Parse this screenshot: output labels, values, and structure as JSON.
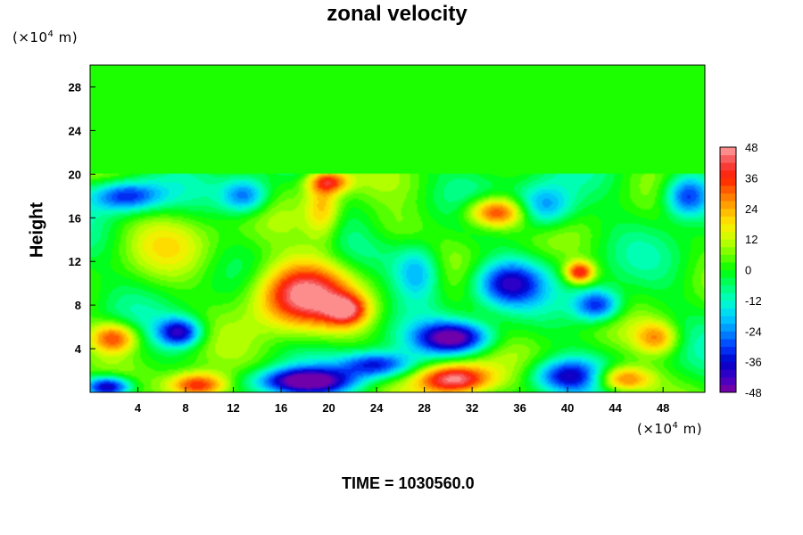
{
  "chart_data": {
    "type": "heatmap",
    "title": "zonal velocity",
    "xlabel": "",
    "ylabel": "Height",
    "x_unit_prefix": "(×10",
    "x_unit_exp": "4",
    "x_unit_suffix": " m)",
    "y_unit_prefix": "(×10",
    "y_unit_exp": "4",
    "y_unit_suffix": " m)",
    "xlim": [
      0,
      51.5
    ],
    "ylim": [
      0,
      30
    ],
    "x_ticks": [
      4,
      8,
      12,
      16,
      20,
      24,
      28,
      32,
      36,
      40,
      44,
      48
    ],
    "y_ticks": [
      4,
      8,
      12,
      16,
      20,
      24,
      28
    ],
    "colorbar": {
      "range": [
        -48,
        48
      ],
      "ticks": [
        48,
        36,
        24,
        12,
        0,
        -12,
        -24,
        -36,
        -48
      ],
      "levels": 32
    },
    "stratosphere_level": 20,
    "stratosphere_value": 1,
    "features": [
      {
        "x": 17.5,
        "y": 9,
        "amp": 48,
        "sx": 4,
        "sy": 3
      },
      {
        "x": 21.5,
        "y": 7.5,
        "amp": 30,
        "sx": 1.8,
        "sy": 1.4
      },
      {
        "x": 19.5,
        "y": 17,
        "amp": 22,
        "sx": 1.5,
        "sy": 3
      },
      {
        "x": 20,
        "y": 19.3,
        "amp": 30,
        "sx": 1.8,
        "sy": 1
      },
      {
        "x": 34,
        "y": 16.5,
        "amp": 40,
        "sx": 2.5,
        "sy": 1.4
      },
      {
        "x": 41,
        "y": 11,
        "amp": 38,
        "sx": 1.2,
        "sy": 1
      },
      {
        "x": 2,
        "y": 5,
        "amp": 35,
        "sx": 2,
        "sy": 1.4
      },
      {
        "x": 9,
        "y": 0.6,
        "amp": 42,
        "sx": 2.5,
        "sy": 1.2
      },
      {
        "x": 30.5,
        "y": 1.2,
        "amp": 48,
        "sx": 3,
        "sy": 1.4
      },
      {
        "x": 44.5,
        "y": 1.2,
        "amp": 35,
        "sx": 2.5,
        "sy": 1.2
      },
      {
        "x": 47.5,
        "y": 5,
        "amp": 25,
        "sx": 1.8,
        "sy": 1.5
      },
      {
        "x": 7,
        "y": 14,
        "amp": 10,
        "sx": 4,
        "sy": 3
      },
      {
        "x": 7.5,
        "y": 5.5,
        "amp": -40,
        "sx": 1.8,
        "sy": 1.3
      },
      {
        "x": 13,
        "y": 18,
        "amp": -30,
        "sx": 2,
        "sy": 1.6
      },
      {
        "x": 3,
        "y": 18,
        "amp": -35,
        "sx": 3,
        "sy": 1.4
      },
      {
        "x": 30.5,
        "y": 5,
        "amp": -46,
        "sx": 3,
        "sy": 1.4
      },
      {
        "x": 35,
        "y": 10,
        "amp": -35,
        "sx": 2.8,
        "sy": 2
      },
      {
        "x": 27.5,
        "y": 11,
        "amp": -26,
        "sx": 2,
        "sy": 2.5
      },
      {
        "x": 38,
        "y": 17,
        "amp": -30,
        "sx": 2.5,
        "sy": 2
      },
      {
        "x": 42.5,
        "y": 8,
        "amp": -38,
        "sx": 2,
        "sy": 1.5
      },
      {
        "x": 50,
        "y": 18,
        "amp": -38,
        "sx": 2,
        "sy": 2
      },
      {
        "x": 18,
        "y": 1,
        "amp": -48,
        "sx": 4,
        "sy": 1.2
      },
      {
        "x": 1.5,
        "y": 0.5,
        "amp": -48,
        "sx": 2,
        "sy": 1
      },
      {
        "x": 24,
        "y": 2.5,
        "amp": -36,
        "sx": 3,
        "sy": 1.2
      },
      {
        "x": 40,
        "y": 1.5,
        "amp": -35,
        "sx": 3,
        "sy": 1.5
      },
      {
        "x": 25,
        "y": 15,
        "amp": 8,
        "sx": 3,
        "sy": 2
      }
    ]
  },
  "footer": {
    "time_label": "TIME = 1030560.0"
  }
}
